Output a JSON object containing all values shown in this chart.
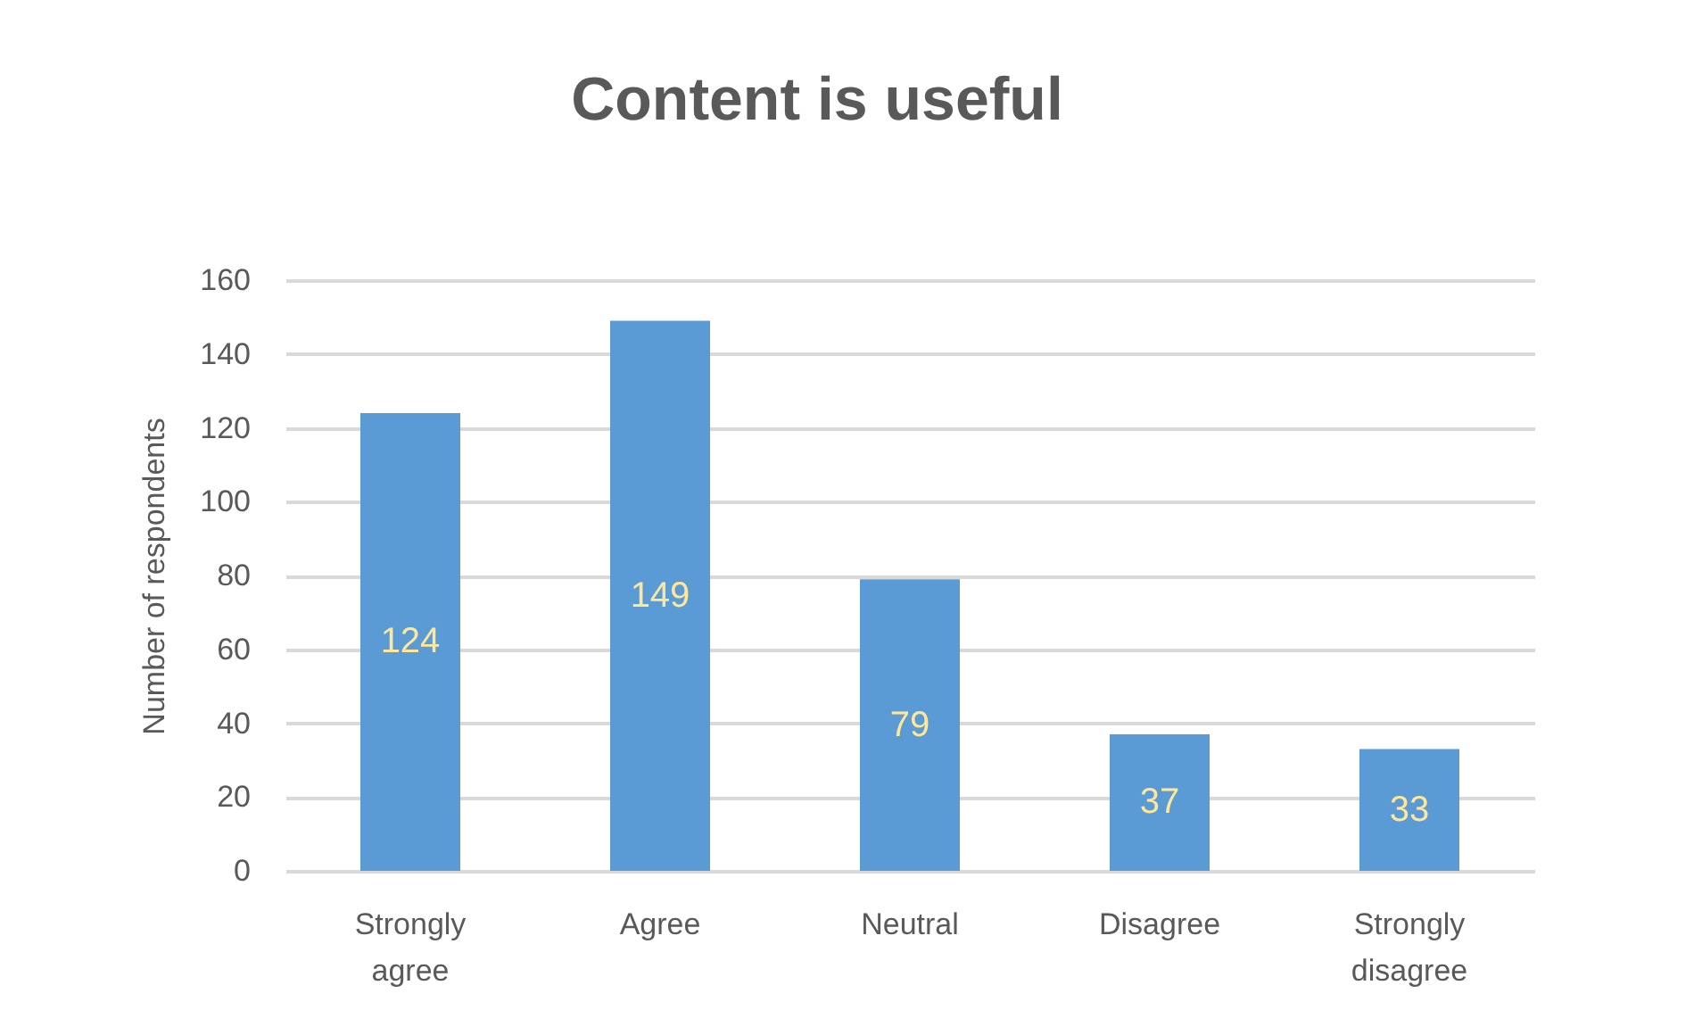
{
  "chart_data": {
    "type": "bar",
    "title": "Content is useful",
    "ylabel": "Number of respondents",
    "categories": [
      "Strongly agree",
      "Agree",
      "Neutral",
      "Disagree",
      "Strongly disagree"
    ],
    "values": [
      124,
      149,
      79,
      37,
      33
    ],
    "color": "#5b9bd5",
    "ylim": [
      0,
      160
    ],
    "yticks": [
      0,
      20,
      40,
      60,
      80,
      100,
      120,
      140,
      160
    ],
    "grid": "y",
    "data_labels": true
  }
}
